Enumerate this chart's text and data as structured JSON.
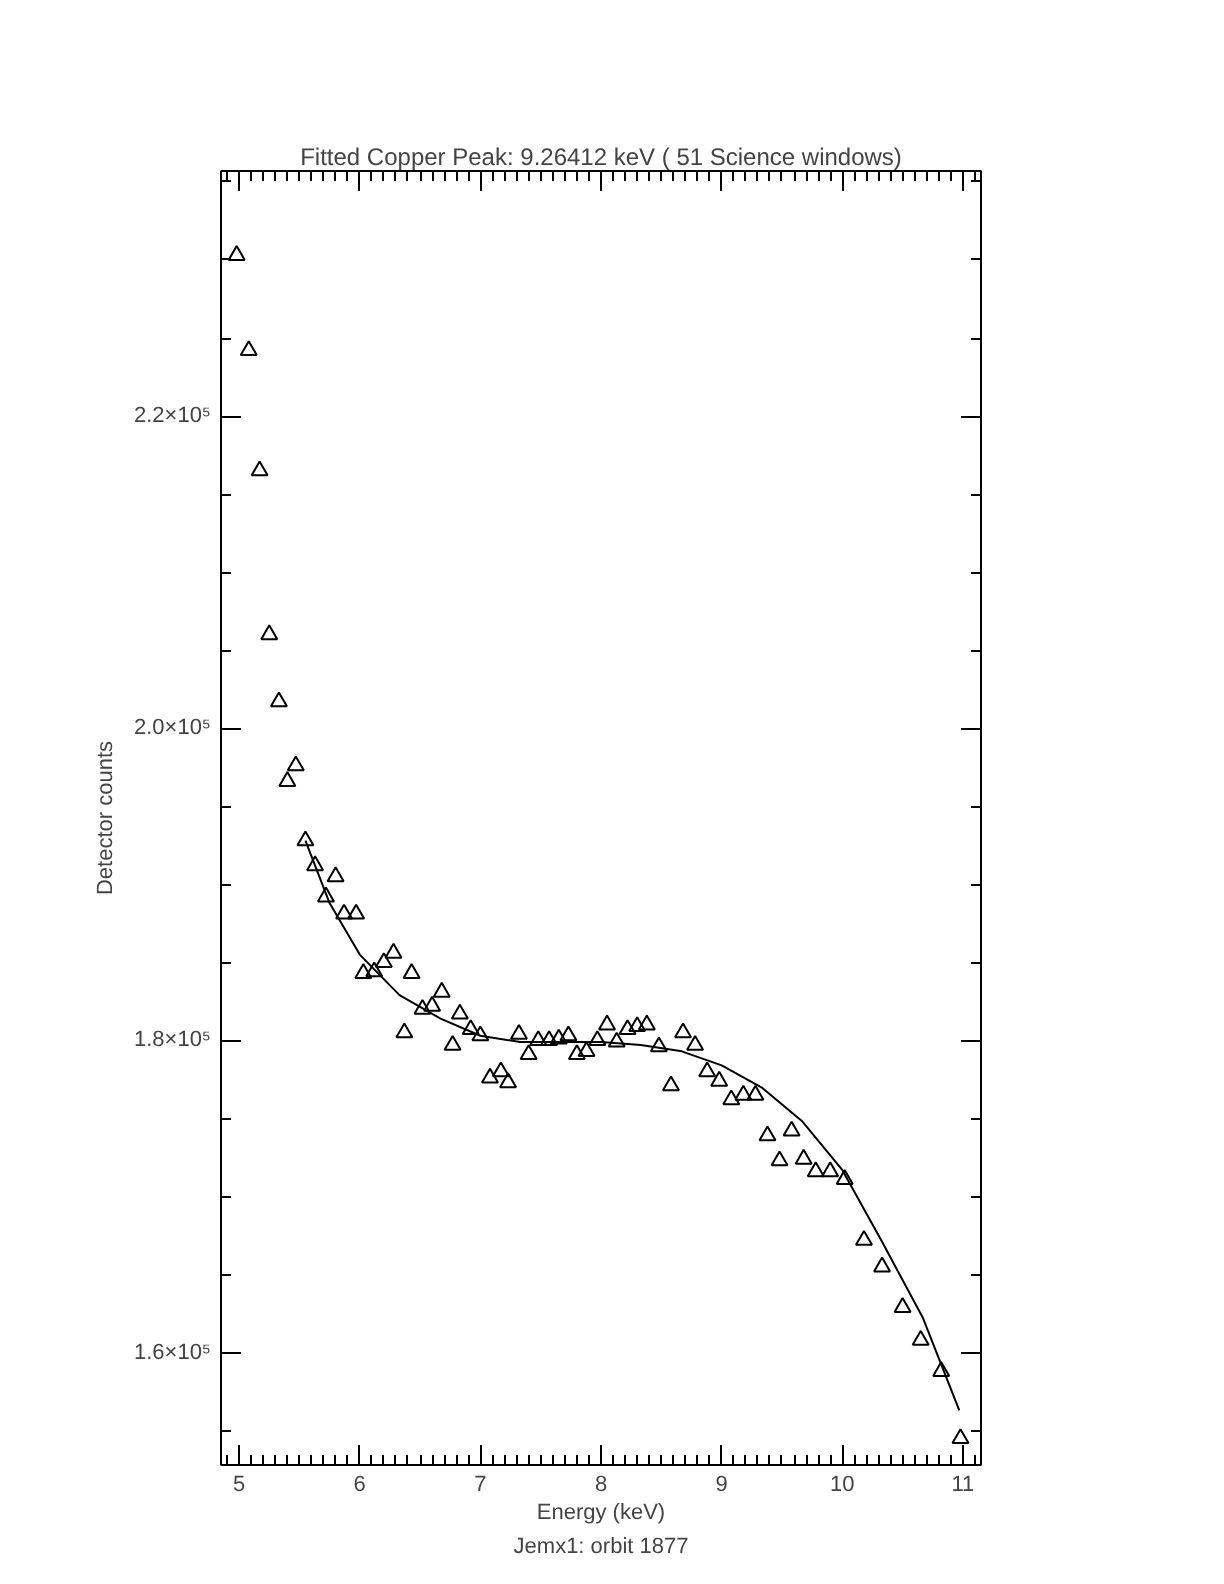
{
  "chart_data": {
    "type": "scatter",
    "title": "Fitted Copper Peak: 9.26412 keV ( 51 Science windows)",
    "xlabel": "Energy (keV)",
    "ylabel": "Detector counts",
    "annotations": [
      "Jemx1: orbit 1877"
    ],
    "xlim": [
      4.85,
      11.15
    ],
    "ylim": [
      152800,
      235700
    ],
    "xticks": [
      5,
      6,
      7,
      8,
      9,
      10,
      11
    ],
    "yticks": [
      {
        "value": 160000,
        "label": "1.6×10⁵"
      },
      {
        "value": 180000,
        "label": "1.8×10⁵"
      },
      {
        "value": 200000,
        "label": "2.0×10⁵"
      },
      {
        "value": 220000,
        "label": "2.2×10⁵"
      }
    ],
    "series": [
      {
        "color": "#000000",
        "marker": "triangle",
        "x": [
          4.98,
          5.08,
          5.17,
          5.25,
          5.33,
          5.4,
          5.47,
          5.55,
          5.63,
          5.72,
          5.8,
          5.87,
          5.97,
          6.03,
          6.12,
          6.2,
          6.28,
          6.37,
          6.43,
          6.52,
          6.6,
          6.68,
          6.77,
          6.83,
          6.92,
          7.0,
          7.08,
          7.17,
          7.23,
          7.32,
          7.4,
          7.48,
          7.57,
          7.65,
          7.73,
          7.8,
          7.88,
          7.97,
          8.05,
          8.13,
          8.22,
          8.3,
          8.38,
          8.48,
          8.58,
          8.68,
          8.78,
          8.88,
          8.98,
          9.08,
          9.18,
          9.28,
          9.38,
          9.48,
          9.58,
          9.68,
          9.78,
          9.9,
          10.02,
          10.18,
          10.33,
          10.5,
          10.65,
          10.82,
          10.98
        ],
        "values": [
          230300,
          224200,
          216500,
          206000,
          201700,
          196600,
          197600,
          192800,
          191200,
          189200,
          190500,
          188100,
          188100,
          184300,
          184400,
          185000,
          185600,
          180500,
          184300,
          182000,
          182200,
          183100,
          179700,
          181700,
          180700,
          180300,
          177600,
          178000,
          177300,
          180400,
          179100,
          180000,
          180000,
          180100,
          180300,
          179100,
          179300,
          180000,
          181000,
          179900,
          180700,
          180900,
          181000,
          179600,
          177100,
          180500,
          179700,
          178000,
          177400,
          176200,
          176500,
          176500,
          173900,
          172300,
          174200,
          172400,
          171600,
          171600,
          171100,
          167200,
          165500,
          162900,
          160800,
          158800,
          154500
        ]
      },
      {
        "type": "line",
        "color": "#000000",
        "marker": "none",
        "line_style": "solid",
        "x": [
          5.55,
          5.75,
          6.0,
          6.33,
          6.67,
          7.0,
          7.33,
          7.67,
          8.0,
          8.33,
          8.67,
          9.0,
          9.33,
          9.67,
          10.0,
          10.33,
          10.67,
          10.97
        ],
        "values": [
          192800,
          188800,
          185500,
          182900,
          181400,
          180300,
          179900,
          179900,
          179900,
          179700,
          179300,
          178400,
          177000,
          174800,
          171700,
          167100,
          162200,
          156300
        ]
      }
    ]
  }
}
